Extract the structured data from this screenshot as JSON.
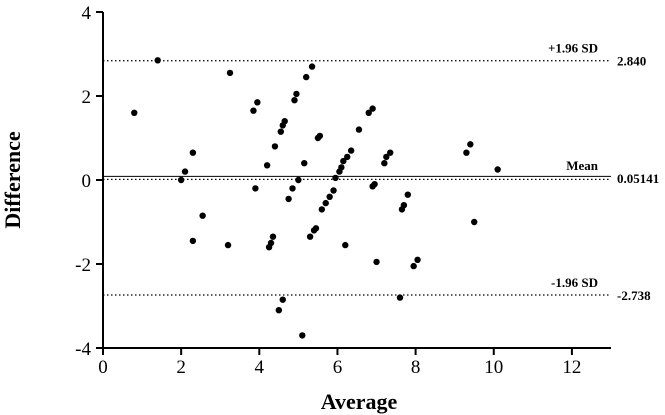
{
  "chart_data": {
    "type": "scatter",
    "title": "",
    "xlabel": "Average",
    "ylabel": "Difference",
    "xlim": [
      0,
      13
    ],
    "ylim": [
      -4,
      4
    ],
    "xticks": [
      0,
      2,
      4,
      6,
      8,
      10,
      12
    ],
    "yticks": [
      -4,
      -2,
      0,
      2,
      4
    ],
    "grid": false,
    "reference_lines": [
      {
        "id": "upper",
        "y": 2.84,
        "label": "+1.96 SD",
        "value_label": "2.840"
      },
      {
        "id": "mean",
        "y": 0.05141,
        "label": "Mean",
        "value_label": "0.05141"
      },
      {
        "id": "lower",
        "y": -2.738,
        "label": "-1.96 SD",
        "value_label": "-2.738"
      }
    ],
    "points": [
      {
        "x": 0.8,
        "y": 1.6
      },
      {
        "x": 1.4,
        "y": 2.85
      },
      {
        "x": 2.0,
        "y": 0.0
      },
      {
        "x": 2.1,
        "y": 0.2
      },
      {
        "x": 2.3,
        "y": 0.65
      },
      {
        "x": 2.3,
        "y": -1.45
      },
      {
        "x": 2.55,
        "y": -0.85
      },
      {
        "x": 3.2,
        "y": -1.55
      },
      {
        "x": 3.25,
        "y": 2.55
      },
      {
        "x": 3.85,
        "y": 1.65
      },
      {
        "x": 3.95,
        "y": 1.85
      },
      {
        "x": 3.9,
        "y": -0.2
      },
      {
        "x": 4.2,
        "y": 0.35
      },
      {
        "x": 4.25,
        "y": -1.6
      },
      {
        "x": 4.3,
        "y": -1.5
      },
      {
        "x": 4.35,
        "y": -1.35
      },
      {
        "x": 4.4,
        "y": 0.8
      },
      {
        "x": 4.5,
        "y": -3.1
      },
      {
        "x": 4.55,
        "y": 1.15
      },
      {
        "x": 4.6,
        "y": 1.3
      },
      {
        "x": 4.65,
        "y": 1.4
      },
      {
        "x": 4.6,
        "y": -2.85
      },
      {
        "x": 4.75,
        "y": -0.45
      },
      {
        "x": 4.85,
        "y": -0.2
      },
      {
        "x": 4.9,
        "y": 1.9
      },
      {
        "x": 4.95,
        "y": 2.05
      },
      {
        "x": 5.0,
        "y": 0.0
      },
      {
        "x": 5.1,
        "y": -3.7
      },
      {
        "x": 5.15,
        "y": 0.4
      },
      {
        "x": 5.2,
        "y": 2.45
      },
      {
        "x": 5.3,
        "y": -1.35
      },
      {
        "x": 5.35,
        "y": 2.7
      },
      {
        "x": 5.4,
        "y": -1.2
      },
      {
        "x": 5.45,
        "y": -1.15
      },
      {
        "x": 5.5,
        "y": 1.0
      },
      {
        "x": 5.55,
        "y": 1.05
      },
      {
        "x": 5.6,
        "y": -0.7
      },
      {
        "x": 5.7,
        "y": -0.55
      },
      {
        "x": 5.8,
        "y": -0.4
      },
      {
        "x": 5.9,
        "y": -0.25
      },
      {
        "x": 5.95,
        "y": 0.05
      },
      {
        "x": 6.05,
        "y": 0.2
      },
      {
        "x": 6.1,
        "y": 0.3
      },
      {
        "x": 6.15,
        "y": 0.45
      },
      {
        "x": 6.2,
        "y": -1.55
      },
      {
        "x": 6.25,
        "y": 0.55
      },
      {
        "x": 6.35,
        "y": 0.7
      },
      {
        "x": 6.55,
        "y": 1.2
      },
      {
        "x": 6.8,
        "y": 1.6
      },
      {
        "x": 6.9,
        "y": 1.7
      },
      {
        "x": 6.9,
        "y": -0.15
      },
      {
        "x": 6.95,
        "y": -0.1
      },
      {
        "x": 7.0,
        "y": -1.95
      },
      {
        "x": 7.2,
        "y": 0.4
      },
      {
        "x": 7.25,
        "y": 0.55
      },
      {
        "x": 7.35,
        "y": 0.65
      },
      {
        "x": 7.6,
        "y": -2.8
      },
      {
        "x": 7.65,
        "y": -0.7
      },
      {
        "x": 7.7,
        "y": -0.6
      },
      {
        "x": 7.8,
        "y": -0.35
      },
      {
        "x": 7.95,
        "y": -2.05
      },
      {
        "x": 8.05,
        "y": -1.9
      },
      {
        "x": 9.3,
        "y": 0.65
      },
      {
        "x": 9.4,
        "y": 0.85
      },
      {
        "x": 9.5,
        "y": -1.0
      },
      {
        "x": 10.1,
        "y": 0.25
      }
    ]
  }
}
